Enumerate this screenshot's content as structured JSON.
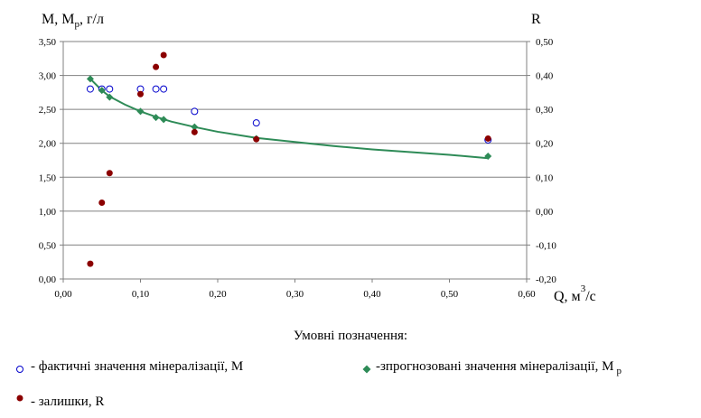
{
  "chart_data": {
    "type": "scatter",
    "y_left_label": "M,  M",
    "y_left_label_sub": "p",
    "y_left_label_unit": ",  г/л",
    "y_right_label": "R",
    "x_label": "Q, м",
    "x_label_sup": "3",
    "x_label_unit": "/с",
    "xlim": [
      0,
      0.6
    ],
    "ylim_left": [
      0,
      3.5
    ],
    "ylim_right": [
      -0.2,
      0.5
    ],
    "x_ticks": [
      "0,00",
      "0,10",
      "0,20",
      "0,30",
      "0,40",
      "0,50",
      "0,60"
    ],
    "y_left_ticks": [
      "0,00",
      "0,50",
      "1,00",
      "1,50",
      "2,00",
      "2,50",
      "3,00",
      "3,50"
    ],
    "y_right_ticks": [
      "-0,20",
      "-0,10",
      "0,00",
      "0,10",
      "0,20",
      "0,30",
      "0,40",
      "0,50"
    ],
    "grid": "horizontal",
    "series": [
      {
        "name": "- фактичні значення мінералізації, М",
        "marker": "open-circle",
        "color": "#0000cc",
        "axis": "left",
        "points": [
          [
            0.035,
            2.8
          ],
          [
            0.05,
            2.8
          ],
          [
            0.06,
            2.8
          ],
          [
            0.1,
            2.8
          ],
          [
            0.12,
            2.8
          ],
          [
            0.13,
            2.8
          ],
          [
            0.17,
            2.47
          ],
          [
            0.25,
            2.3
          ],
          [
            0.55,
            2.05
          ]
        ]
      },
      {
        "name": "-зпрогнозовані значення  мінералізації, М",
        "name_sub": "р",
        "marker": "diamond",
        "color": "#2e8b57",
        "axis": "left",
        "points": [
          [
            0.035,
            2.95
          ],
          [
            0.05,
            2.78
          ],
          [
            0.06,
            2.68
          ],
          [
            0.1,
            2.47
          ],
          [
            0.12,
            2.38
          ],
          [
            0.13,
            2.35
          ],
          [
            0.17,
            2.24
          ],
          [
            0.25,
            2.07
          ],
          [
            0.55,
            1.81
          ]
        ],
        "trend_curve": [
          [
            0.035,
            2.95
          ],
          [
            0.05,
            2.78
          ],
          [
            0.06,
            2.69
          ],
          [
            0.08,
            2.57
          ],
          [
            0.1,
            2.47
          ],
          [
            0.12,
            2.39
          ],
          [
            0.14,
            2.32
          ],
          [
            0.17,
            2.24
          ],
          [
            0.2,
            2.17
          ],
          [
            0.25,
            2.08
          ],
          [
            0.3,
            2.02
          ],
          [
            0.35,
            1.96
          ],
          [
            0.4,
            1.91
          ],
          [
            0.45,
            1.87
          ],
          [
            0.5,
            1.83
          ],
          [
            0.55,
            1.78
          ]
        ]
      },
      {
        "name": "- залишки, R",
        "marker": "filled-circle",
        "color": "#8b0000",
        "axis": "right",
        "points": [
          [
            0.035,
            -0.155
          ],
          [
            0.05,
            0.025
          ],
          [
            0.06,
            0.112
          ],
          [
            0.1,
            0.345
          ],
          [
            0.12,
            0.425
          ],
          [
            0.13,
            0.46
          ],
          [
            0.17,
            0.233
          ],
          [
            0.25,
            0.212
          ],
          [
            0.55,
            0.214
          ]
        ]
      }
    ],
    "legend_title": "Умовні позначення:"
  }
}
